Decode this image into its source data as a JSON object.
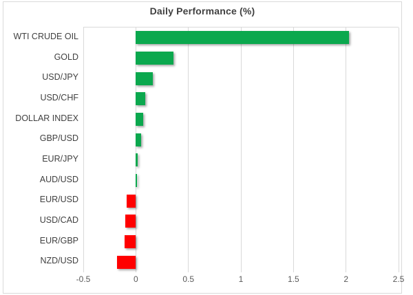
{
  "chart_data": {
    "type": "bar",
    "orientation": "horizontal",
    "title": "Daily Performance (%)",
    "categories": [
      "WTI CRUDE OIL",
      "GOLD",
      "USD/JPY",
      "USD/CHF",
      "DOLLAR INDEX",
      "GBP/USD",
      "EUR/JPY",
      "AUD/USD",
      "EUR/USD",
      "USD/CAD",
      "EUR/GBP",
      "NZD/USD"
    ],
    "values": [
      2.03,
      0.36,
      0.16,
      0.09,
      0.07,
      0.05,
      0.02,
      0.01,
      -0.09,
      -0.1,
      -0.11,
      -0.18
    ],
    "xlabel": "",
    "ylabel": "",
    "xlim": [
      -0.5,
      2.5
    ],
    "xticks": [
      -0.5,
      0,
      0.5,
      1,
      1.5,
      2,
      2.5
    ],
    "xtick_labels": [
      "-0.5",
      "0",
      "0.5",
      "1",
      "1.5",
      "2",
      "2.5"
    ],
    "grid": "vertical-on",
    "legend": "none",
    "colors": {
      "positive_bar": "#0ba84e",
      "negative_bar": "#ff0000",
      "gridline": "#d9d9d9",
      "frame_border": "#d9d9d9",
      "title_text": "#404040",
      "category_text": "#404040",
      "tick_text": "#595959",
      "background": "#ffffff"
    }
  }
}
